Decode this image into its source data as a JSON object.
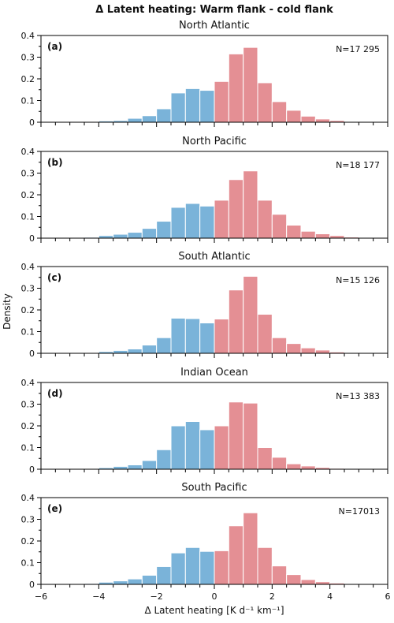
{
  "chart_data": {
    "type": "bar",
    "title": "Δ Latent heating: Warm flank - cold flank",
    "xlabel": "Δ Latent heating [K d⁻¹ km⁻¹]",
    "ylabel": "Density",
    "xlim": [
      -6,
      6
    ],
    "ylim": [
      0,
      0.4
    ],
    "xticks": [
      "−6",
      "−4",
      "−2",
      "0",
      "2",
      "4",
      "6"
    ],
    "yticks": [
      "0",
      "0.1",
      "0.2",
      "0.3",
      "0.4"
    ],
    "bin_edges": [
      -5.5,
      -5.0,
      -4.5,
      -4.0,
      -3.5,
      -3.0,
      -2.5,
      -2.0,
      -1.5,
      -1.0,
      -0.5,
      0.0,
      0.5,
      1.0,
      1.5,
      2.0,
      2.5,
      3.0,
      3.5,
      4.0,
      4.5,
      5.0,
      5.5
    ],
    "negative_color": "#7ab3d9",
    "positive_color": "#e48f94",
    "panels": [
      {
        "label": "(a)",
        "title": "North Atlantic",
        "n_text": "N=17 295",
        "values": [
          0.001,
          0.002,
          0.003,
          0.006,
          0.008,
          0.018,
          0.03,
          0.062,
          0.135,
          0.155,
          0.147,
          0.188,
          0.315,
          0.345,
          0.182,
          0.095,
          0.055,
          0.028,
          0.015,
          0.008,
          0.003,
          0.001
        ]
      },
      {
        "label": "(b)",
        "title": "North Pacific",
        "n_text": "N=18 177",
        "values": [
          0.001,
          0.002,
          0.004,
          0.012,
          0.018,
          0.027,
          0.045,
          0.078,
          0.142,
          0.16,
          0.148,
          0.175,
          0.27,
          0.31,
          0.175,
          0.11,
          0.06,
          0.032,
          0.02,
          0.012,
          0.005,
          0.002
        ]
      },
      {
        "label": "(c)",
        "title": "South Atlantic",
        "n_text": "N=15 126",
        "values": [
          0.001,
          0.002,
          0.003,
          0.008,
          0.013,
          0.02,
          0.038,
          0.072,
          0.162,
          0.16,
          0.14,
          0.158,
          0.292,
          0.355,
          0.18,
          0.072,
          0.045,
          0.025,
          0.015,
          0.006,
          0.002,
          0.001
        ]
      },
      {
        "label": "(d)",
        "title": "Indian Ocean",
        "n_text": "N=13 383",
        "values": [
          0.001,
          0.002,
          0.003,
          0.007,
          0.013,
          0.02,
          0.04,
          0.09,
          0.2,
          0.22,
          0.182,
          0.2,
          0.31,
          0.305,
          0.1,
          0.055,
          0.025,
          0.015,
          0.008,
          0.004,
          0.002,
          0.001
        ]
      },
      {
        "label": "(e)",
        "title": "South Pacific",
        "n_text": "N=17013",
        "values": [
          0.001,
          0.002,
          0.004,
          0.01,
          0.016,
          0.025,
          0.042,
          0.082,
          0.145,
          0.17,
          0.152,
          0.155,
          0.27,
          0.33,
          0.17,
          0.085,
          0.045,
          0.022,
          0.012,
          0.006,
          0.002,
          0.001
        ]
      }
    ]
  }
}
